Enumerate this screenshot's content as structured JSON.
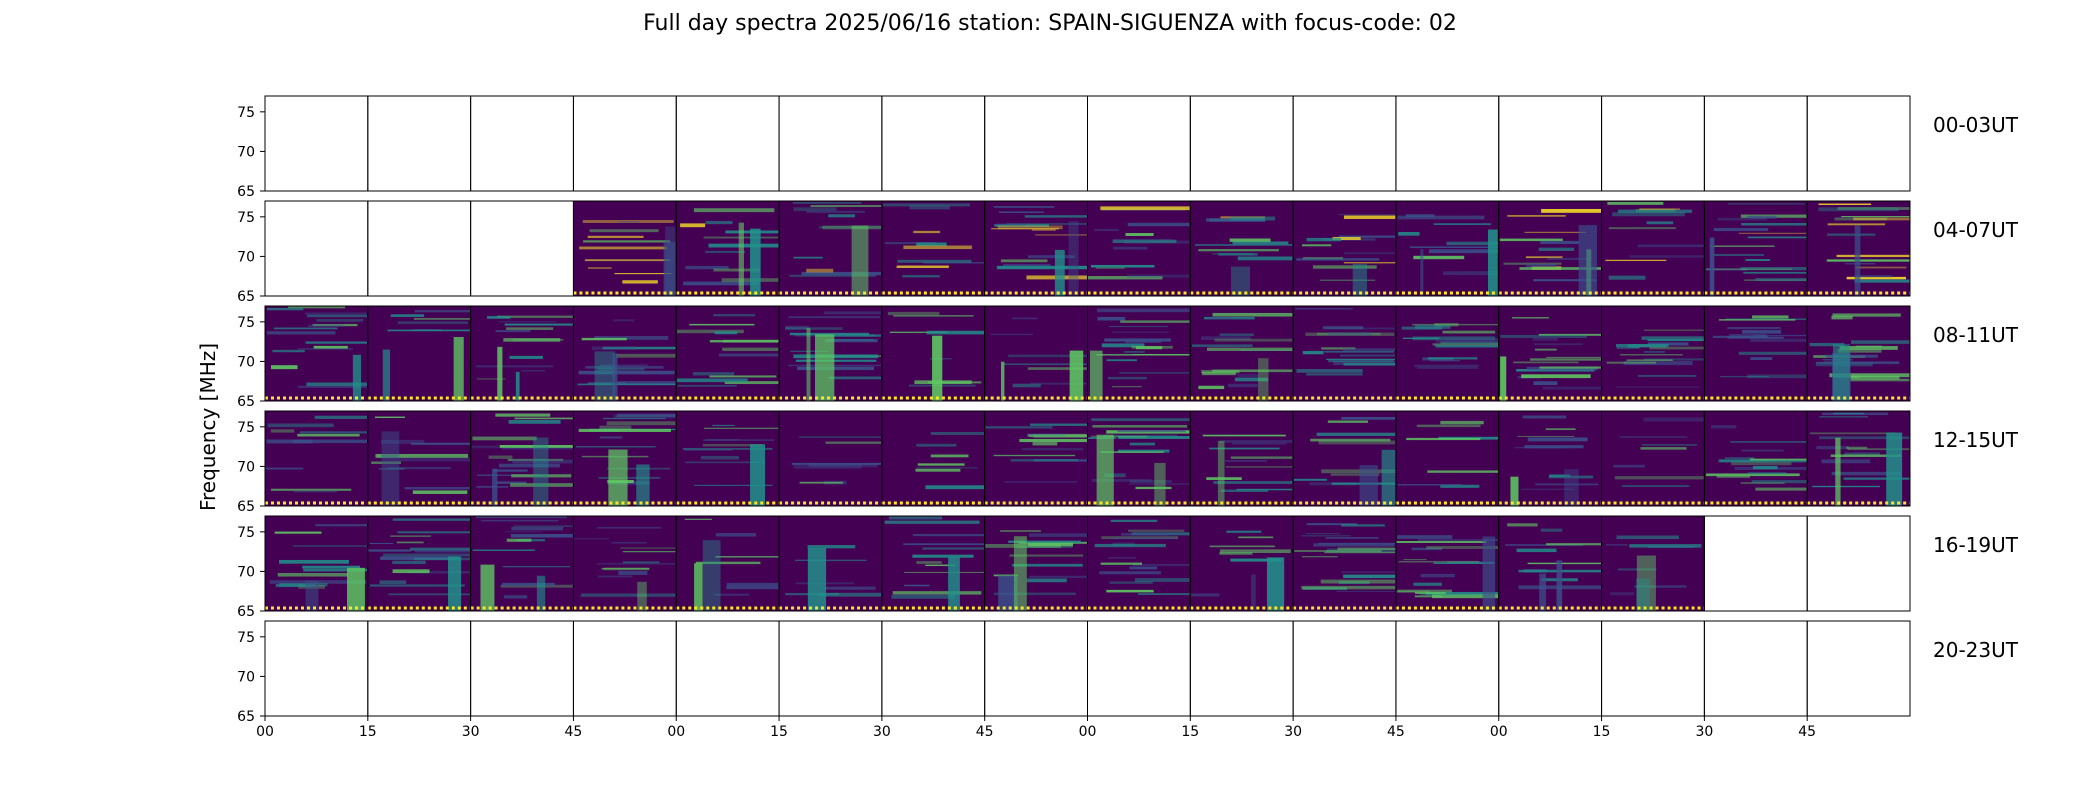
{
  "title": "Full day spectra 2025/06/16 station: SPAIN-SIGUENZA with focus-code: 02",
  "chart_data": {
    "type": "heatmap",
    "title": "Full day spectra 2025/06/16 station: SPAIN-SIGUENZA with focus-code: 02",
    "ylabel": "Frequency [MHz]",
    "xlabel": "",
    "ylim": [
      65,
      77
    ],
    "yticks": [
      "75",
      "70",
      "65"
    ],
    "xticks": [
      "00",
      "15",
      "30",
      "45",
      "00",
      "15",
      "30",
      "45",
      "00",
      "15",
      "30",
      "45",
      "00",
      "15",
      "30",
      "45"
    ],
    "colormap": [
      "#440154",
      "#3b528b",
      "#21918c",
      "#5ec962",
      "#fde725"
    ],
    "rows": [
      {
        "label": "00-03UT",
        "available": [
          0,
          0,
          0,
          0,
          0,
          0,
          0,
          0,
          0,
          0,
          0,
          0,
          0,
          0,
          0,
          0
        ]
      },
      {
        "label": "04-07UT",
        "available": [
          0,
          0,
          0,
          1,
          1,
          1,
          1,
          1,
          1,
          1,
          1,
          1,
          1,
          1,
          1,
          1
        ]
      },
      {
        "label": "08-11UT",
        "available": [
          1,
          1,
          1,
          1,
          1,
          1,
          1,
          1,
          1,
          1,
          1,
          1,
          1,
          1,
          1,
          1
        ]
      },
      {
        "label": "12-15UT",
        "available": [
          1,
          1,
          1,
          1,
          1,
          1,
          1,
          1,
          1,
          1,
          1,
          1,
          1,
          1,
          1,
          1
        ]
      },
      {
        "label": "16-19UT",
        "available": [
          1,
          1,
          1,
          1,
          1,
          1,
          1,
          1,
          1,
          1,
          1,
          1,
          1,
          1,
          0,
          0
        ]
      },
      {
        "label": "20-23UT",
        "available": [
          0,
          0,
          0,
          0,
          0,
          0,
          0,
          0,
          0,
          0,
          0,
          0,
          0,
          0,
          0,
          0
        ]
      }
    ]
  }
}
